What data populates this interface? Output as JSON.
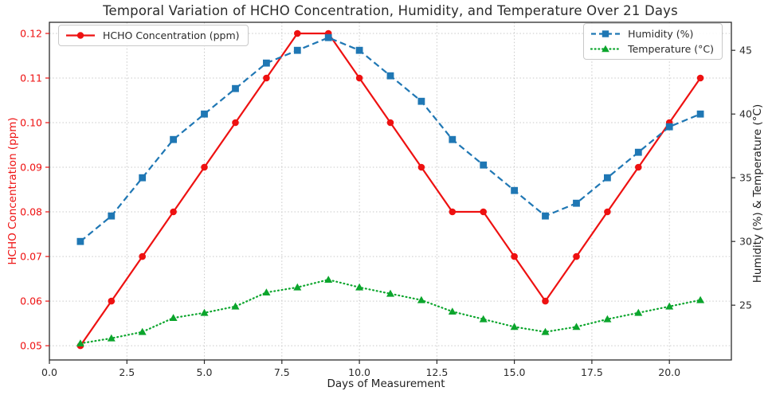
{
  "chart_data": {
    "type": "line",
    "title": "Temporal Variation of HCHO Concentration, Humidity, and Temperature Over 21 Days",
    "xlabel": "Days of Measurement",
    "ylabel_left": "HCHO Concentration (ppm)",
    "ylabel_right": "Humidity (%) & Temperature (°C)",
    "x": [
      1,
      2,
      3,
      4,
      5,
      6,
      7,
      8,
      9,
      10,
      11,
      12,
      13,
      14,
      15,
      16,
      17,
      18,
      19,
      20,
      21
    ],
    "series": [
      {
        "name": "HCHO Concentration (ppm)",
        "axis": "left",
        "color": "#ee1111",
        "marker": "circle",
        "linestyle": "solid",
        "values": [
          0.05,
          0.06,
          0.07,
          0.08,
          0.09,
          0.1,
          0.11,
          0.12,
          0.12,
          0.11,
          0.1,
          0.09,
          0.08,
          0.08,
          0.07,
          0.06,
          0.07,
          0.08,
          0.09,
          0.1,
          0.11
        ]
      },
      {
        "name": "Humidity (%)",
        "axis": "right",
        "color": "#1f77b4",
        "marker": "square",
        "linestyle": "dashed",
        "values": [
          30,
          32,
          35,
          38,
          40,
          42,
          44,
          45,
          46,
          45,
          43,
          41,
          38,
          36,
          34,
          32,
          33,
          35,
          37,
          39,
          40
        ]
      },
      {
        "name": "Temperature (°C)",
        "axis": "right",
        "color": "#0ba52c",
        "marker": "triangle",
        "linestyle": "dotted",
        "values": [
          22.0,
          22.4,
          22.9,
          24.0,
          24.4,
          24.9,
          26.0,
          26.4,
          27.0,
          26.4,
          25.9,
          25.4,
          24.5,
          23.9,
          23.3,
          22.9,
          23.3,
          23.9,
          24.4,
          24.9,
          25.4
        ]
      }
    ],
    "xticks": [
      0,
      2.5,
      5,
      7.5,
      10,
      12.5,
      15,
      17.5,
      20
    ],
    "yticks_left": [
      0.05,
      0.06,
      0.07,
      0.08,
      0.09,
      0.1,
      0.11,
      0.12
    ],
    "yticks_right": [
      25,
      30,
      35,
      40,
      45
    ],
    "xlim": [
      0,
      22
    ],
    "ylim_left": [
      0.0468,
      0.1225
    ],
    "ylim_right": [
      20.7,
      47.2
    ],
    "grid": true,
    "legend_left_position": "upper left",
    "legend_right_position": "upper right",
    "axis_colors": {
      "left": "#ee1111",
      "bottom": "#2b2b2b",
      "right": "#2b2b2b"
    }
  }
}
